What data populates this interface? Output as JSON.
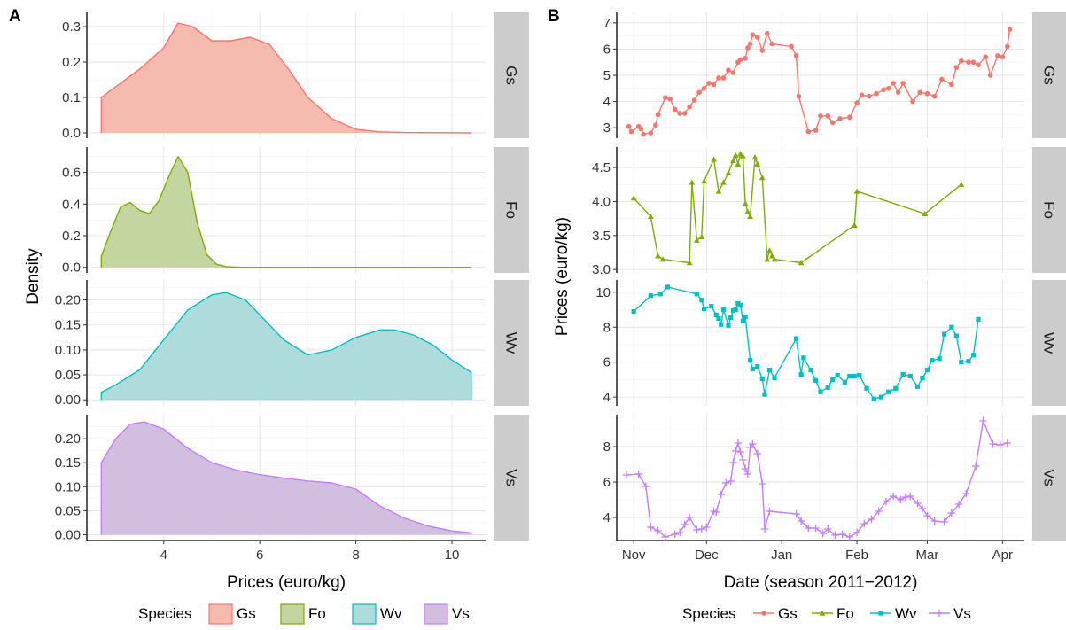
{
  "colors": {
    "Gs": "#F8766D",
    "Fo": "#7CAE00",
    "Wv": "#00BFC4",
    "Vs": "#C77CFF"
  },
  "fill_colors": {
    "Gs": "#F4BBAE",
    "Fo": "#C3D6A0",
    "Wv": "#AEDBDC",
    "Vs": "#D2BFDF"
  },
  "species_order": [
    "Gs",
    "Fo",
    "Wv",
    "Vs"
  ],
  "chart_data": [
    {
      "panel": "A",
      "type": "area",
      "xlabel": "Prices (euro/kg)",
      "ylabel": "Density",
      "xlim": [
        2.4,
        10.7
      ],
      "xticks": [
        4,
        6,
        8,
        10
      ],
      "legend": {
        "title": "Species",
        "placement": "bottom",
        "entries": [
          "Gs",
          "Fo",
          "Wv",
          "Vs"
        ]
      },
      "grid": true,
      "facets": [
        {
          "name": "Gs",
          "ylim": [
            -0.015,
            0.34
          ],
          "yticks": [
            "0.0",
            "0.1",
            "0.2",
            "0.3"
          ],
          "x": [
            2.7,
            3.0,
            3.5,
            4.0,
            4.3,
            4.6,
            5.0,
            5.4,
            5.8,
            6.2,
            6.6,
            7.0,
            7.5,
            8.0,
            8.5,
            9.0,
            10.4
          ],
          "y": [
            0.1,
            0.13,
            0.18,
            0.24,
            0.31,
            0.3,
            0.26,
            0.26,
            0.27,
            0.25,
            0.18,
            0.1,
            0.04,
            0.01,
            0.003,
            0.001,
            0.0
          ]
        },
        {
          "name": "Fo",
          "ylim": [
            -0.035,
            0.76
          ],
          "yticks": [
            "0.0",
            "0.2",
            "0.4",
            "0.6"
          ],
          "x": [
            2.7,
            2.9,
            3.1,
            3.3,
            3.5,
            3.7,
            3.9,
            4.1,
            4.3,
            4.5,
            4.7,
            4.9,
            5.1,
            5.3,
            5.6,
            10.4
          ],
          "y": [
            0.07,
            0.23,
            0.38,
            0.41,
            0.36,
            0.34,
            0.42,
            0.57,
            0.7,
            0.6,
            0.28,
            0.08,
            0.02,
            0.005,
            0.0,
            0.0
          ]
        },
        {
          "name": "Wv",
          "ylim": [
            -0.012,
            0.24
          ],
          "yticks": [
            "0.00",
            "0.05",
            "0.10",
            "0.15",
            "0.20"
          ],
          "x": [
            2.7,
            3.0,
            3.5,
            4.0,
            4.5,
            5.0,
            5.3,
            5.7,
            6.0,
            6.5,
            7.0,
            7.5,
            8.0,
            8.5,
            8.8,
            9.2,
            9.6,
            10.0,
            10.4
          ],
          "y": [
            0.015,
            0.03,
            0.06,
            0.12,
            0.18,
            0.21,
            0.215,
            0.2,
            0.17,
            0.12,
            0.09,
            0.1,
            0.125,
            0.14,
            0.14,
            0.13,
            0.11,
            0.08,
            0.055
          ]
        },
        {
          "name": "Vs",
          "ylim": [
            -0.012,
            0.25
          ],
          "yticks": [
            "0.00",
            "0.05",
            "0.10",
            "0.15",
            "0.20"
          ],
          "x": [
            2.7,
            3.0,
            3.3,
            3.6,
            4.0,
            4.5,
            5.0,
            5.5,
            6.0,
            6.5,
            7.0,
            7.5,
            8.0,
            8.5,
            9.0,
            9.5,
            10.0,
            10.4
          ],
          "y": [
            0.15,
            0.2,
            0.23,
            0.235,
            0.22,
            0.18,
            0.15,
            0.135,
            0.125,
            0.118,
            0.112,
            0.108,
            0.095,
            0.06,
            0.035,
            0.018,
            0.008,
            0.004
          ]
        }
      ]
    },
    {
      "panel": "B",
      "type": "line",
      "xlabel": "Date (season 2011−2012)",
      "ylabel": "Prices (euro/kg)",
      "xlim": [
        "2011-10-25",
        "2012-04-10"
      ],
      "xticks": [
        {
          "date": "2011-11-01",
          "label": "Nov"
        },
        {
          "date": "2011-12-01",
          "label": "Dec"
        },
        {
          "date": "2012-01-01",
          "label": "Jan"
        },
        {
          "date": "2012-02-01",
          "label": "Feb"
        },
        {
          "date": "2012-03-01",
          "label": "Mar"
        },
        {
          "date": "2012-04-01",
          "label": "Apr"
        }
      ],
      "legend": {
        "title": "Species",
        "placement": "bottom",
        "entries": [
          "Gs",
          "Fo",
          "Wv",
          "Vs"
        ]
      },
      "grid": true,
      "facets": [
        {
          "name": "Gs",
          "marker": "circle",
          "ylim": [
            2.6,
            7.4
          ],
          "yticks": [
            "3",
            "4",
            "5",
            "6",
            "7"
          ],
          "x": [
            "2011-10-30",
            "2011-10-31",
            "2011-11-03",
            "2011-11-04",
            "2011-11-05",
            "2011-11-08",
            "2011-11-10",
            "2011-11-11",
            "2011-11-14",
            "2011-11-16",
            "2011-11-18",
            "2011-11-20",
            "2011-11-22",
            "2011-11-24",
            "2011-11-26",
            "2011-11-28",
            "2011-11-30",
            "2011-12-02",
            "2011-12-04",
            "2011-12-06",
            "2011-12-08",
            "2011-12-10",
            "2011-12-12",
            "2011-12-14",
            "2011-12-15",
            "2011-12-17",
            "2011-12-18",
            "2011-12-19",
            "2011-12-20",
            "2011-12-22",
            "2011-12-24",
            "2011-12-26",
            "2011-12-28",
            "2012-01-05",
            "2012-01-07",
            "2012-01-08",
            "2012-01-12",
            "2012-01-15",
            "2012-01-17",
            "2012-01-20",
            "2012-01-22",
            "2012-01-25",
            "2012-01-29",
            "2012-02-01",
            "2012-02-03",
            "2012-02-06",
            "2012-02-09",
            "2012-02-12",
            "2012-02-14",
            "2012-02-16",
            "2012-02-18",
            "2012-02-20",
            "2012-02-24",
            "2012-02-27",
            "2012-03-01",
            "2012-03-04",
            "2012-03-07",
            "2012-03-11",
            "2012-03-13",
            "2012-03-15",
            "2012-03-18",
            "2012-03-20",
            "2012-03-22",
            "2012-03-25",
            "2012-03-27",
            "2012-03-30",
            "2012-04-01",
            "2012-04-03",
            "2012-04-04"
          ],
          "y": [
            3.05,
            2.85,
            3.05,
            2.95,
            2.75,
            2.8,
            3.1,
            3.5,
            4.15,
            4.1,
            3.7,
            3.55,
            3.55,
            3.8,
            4.05,
            4.35,
            4.5,
            4.7,
            4.65,
            4.9,
            4.9,
            5.2,
            5.1,
            5.5,
            5.6,
            5.65,
            6.05,
            6.2,
            6.55,
            6.45,
            5.95,
            6.6,
            6.2,
            6.1,
            5.75,
            4.2,
            2.85,
            2.9,
            3.45,
            3.45,
            3.2,
            3.35,
            3.4,
            3.95,
            4.25,
            4.2,
            4.3,
            4.45,
            4.5,
            4.7,
            4.35,
            4.7,
            4.0,
            4.35,
            4.3,
            4.2,
            4.85,
            4.65,
            5.3,
            5.55,
            5.5,
            5.5,
            5.4,
            5.7,
            5.0,
            5.75,
            5.7,
            6.1,
            6.75
          ]
        },
        {
          "name": "Fo",
          "marker": "triangle",
          "ylim": [
            2.95,
            4.8
          ],
          "yticks": [
            "3.0",
            "3.5",
            "4.0",
            "4.5"
          ],
          "x": [
            "2011-11-01",
            "2011-11-08",
            "2011-11-11",
            "2011-11-13",
            "2011-11-24",
            "2011-11-25",
            "2011-11-27",
            "2011-11-29",
            "2011-11-30",
            "2011-12-04",
            "2011-12-06",
            "2011-12-08",
            "2011-12-10",
            "2011-12-12",
            "2011-12-13",
            "2011-12-14",
            "2011-12-15",
            "2011-12-16",
            "2011-12-17",
            "2011-12-18",
            "2011-12-19",
            "2011-12-21",
            "2011-12-22",
            "2011-12-24",
            "2011-12-26",
            "2011-12-27",
            "2011-12-28",
            "2011-12-29",
            "2012-01-09",
            "2012-01-31",
            "2012-02-01",
            "2012-02-29",
            "2012-03-15"
          ],
          "y": [
            4.05,
            3.78,
            3.2,
            3.15,
            3.1,
            4.28,
            3.43,
            3.48,
            4.3,
            4.62,
            4.15,
            4.28,
            4.42,
            4.6,
            4.68,
            4.55,
            4.7,
            4.67,
            3.97,
            3.85,
            3.78,
            4.65,
            4.55,
            4.35,
            3.15,
            3.28,
            3.2,
            3.15,
            3.1,
            3.65,
            4.15,
            3.82,
            4.25
          ]
        },
        {
          "name": "Wv",
          "marker": "square",
          "ylim": [
            3.5,
            10.7
          ],
          "yticks": [
            "4",
            "6",
            "8",
            "10"
          ],
          "x": [
            "2011-11-01",
            "2011-11-08",
            "2011-11-12",
            "2011-11-15",
            "2011-11-27",
            "2011-11-29",
            "2011-11-30",
            "2011-12-03",
            "2011-12-05",
            "2011-12-06",
            "2011-12-07",
            "2011-12-08",
            "2011-12-10",
            "2011-12-11",
            "2011-12-12",
            "2011-12-13",
            "2011-12-14",
            "2011-12-15",
            "2011-12-16",
            "2011-12-17",
            "2011-12-19",
            "2011-12-20",
            "2011-12-22",
            "2011-12-24",
            "2011-12-25",
            "2011-12-27",
            "2011-12-29",
            "2012-01-07",
            "2012-01-09",
            "2012-01-10",
            "2012-01-13",
            "2012-01-15",
            "2012-01-17",
            "2012-01-20",
            "2012-01-22",
            "2012-01-24",
            "2012-01-27",
            "2012-01-29",
            "2012-01-31",
            "2012-02-02",
            "2012-02-05",
            "2012-02-08",
            "2012-02-11",
            "2012-02-14",
            "2012-02-17",
            "2012-02-20",
            "2012-02-23",
            "2012-02-26",
            "2012-02-28",
            "2012-03-01",
            "2012-03-03",
            "2012-03-06",
            "2012-03-08",
            "2012-03-11",
            "2012-03-13",
            "2012-03-15",
            "2012-03-18",
            "2012-03-20",
            "2012-03-22"
          ],
          "y": [
            8.9,
            9.8,
            9.9,
            10.3,
            9.9,
            9.55,
            9.05,
            9.2,
            8.7,
            8.5,
            8.15,
            9.0,
            8.1,
            8.55,
            8.95,
            9.0,
            9.35,
            9.25,
            8.35,
            8.6,
            6.1,
            5.6,
            5.75,
            5.05,
            4.15,
            5.55,
            5.1,
            7.35,
            5.3,
            6.25,
            5.55,
            4.95,
            4.3,
            4.55,
            5.0,
            5.25,
            4.85,
            5.2,
            5.2,
            5.25,
            4.5,
            3.9,
            4.0,
            4.3,
            4.5,
            5.3,
            5.2,
            4.6,
            5.1,
            5.55,
            6.1,
            6.2,
            7.6,
            8.0,
            7.5,
            6.0,
            6.05,
            6.4,
            8.45
          ]
        },
        {
          "name": "Vs",
          "marker": "plus",
          "ylim": [
            2.7,
            9.8
          ],
          "yticks": [
            "4",
            "6",
            "8"
          ],
          "x": [
            "2011-10-29",
            "2011-11-03",
            "2011-11-06",
            "2011-11-08",
            "2011-11-11",
            "2011-11-14",
            "2011-11-18",
            "2011-11-20",
            "2011-11-22",
            "2011-11-24",
            "2011-11-27",
            "2011-11-29",
            "2011-12-01",
            "2011-12-04",
            "2011-12-05",
            "2011-12-07",
            "2011-12-09",
            "2011-12-11",
            "2011-12-12",
            "2011-12-13",
            "2011-12-14",
            "2011-12-15",
            "2011-12-16",
            "2011-12-17",
            "2011-12-18",
            "2011-12-19",
            "2011-12-20",
            "2011-12-22",
            "2011-12-24",
            "2011-12-25",
            "2011-12-27",
            "2012-01-07",
            "2012-01-09",
            "2012-01-12",
            "2012-01-15",
            "2012-01-18",
            "2012-01-20",
            "2012-01-23",
            "2012-01-26",
            "2012-01-29",
            "2012-02-01",
            "2012-02-04",
            "2012-02-07",
            "2012-02-10",
            "2012-02-13",
            "2012-02-16",
            "2012-02-19",
            "2012-02-21",
            "2012-02-23",
            "2012-02-26",
            "2012-02-28",
            "2012-03-01",
            "2012-03-04",
            "2012-03-08",
            "2012-03-11",
            "2012-03-14",
            "2012-03-17",
            "2012-03-21",
            "2012-03-24",
            "2012-03-28",
            "2012-03-31",
            "2012-04-03"
          ],
          "y": [
            6.4,
            6.45,
            5.75,
            3.45,
            3.25,
            2.9,
            3.05,
            3.15,
            3.6,
            4.0,
            3.3,
            3.35,
            3.45,
            4.35,
            4.3,
            5.3,
            5.95,
            6.05,
            7.1,
            7.75,
            8.2,
            7.7,
            7.25,
            6.75,
            6.45,
            7.95,
            8.15,
            7.6,
            5.9,
            3.35,
            4.35,
            4.2,
            3.8,
            3.4,
            3.4,
            3.1,
            3.35,
            3.0,
            3.05,
            2.9,
            3.15,
            3.65,
            3.9,
            4.35,
            4.9,
            5.2,
            5.0,
            5.15,
            5.2,
            4.8,
            4.5,
            4.1,
            3.8,
            3.75,
            4.25,
            4.75,
            5.35,
            6.9,
            9.45,
            8.15,
            8.1,
            8.2
          ]
        }
      ]
    }
  ]
}
